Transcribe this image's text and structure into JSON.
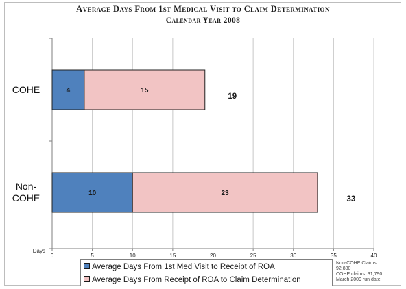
{
  "title": {
    "line1": "Average Days From 1st Medical Visit to Claim Determination",
    "line2": "Calendar Year 2008"
  },
  "colors": {
    "series1": "#4f81bd",
    "series2": "#f2c4c4",
    "bar_border": "#222222",
    "grid": "#c8c8c8",
    "axis": "#7f7f7f"
  },
  "chart_data": {
    "type": "bar",
    "orientation": "horizontal",
    "stacked": true,
    "categories": [
      "COHE",
      "Non-COHE"
    ],
    "series": [
      {
        "name": "Average Days From 1st Med Visit to Receipt of ROA",
        "values": [
          4,
          10
        ]
      },
      {
        "name": "Average Days From Receipt of ROA to Claim Determination",
        "values": [
          15,
          23
        ]
      }
    ],
    "totals": [
      19,
      33
    ],
    "xlabel": "Days",
    "xlim": [
      0,
      40
    ],
    "xticks": [
      0,
      5,
      10,
      15,
      20,
      25,
      30,
      35,
      40
    ],
    "grid": true,
    "legend_position": "bottom"
  },
  "legend": {
    "item1": "Average Days From 1st Med Visit to Receipt of ROA",
    "item2": "Average Days From Receipt of ROA to Claim Determination"
  },
  "note": {
    "line1": "Non-COHE Claims",
    "line2": "92,880",
    "line3": "COHE claims: 31,790",
    "line4": "March 2009 run date"
  }
}
